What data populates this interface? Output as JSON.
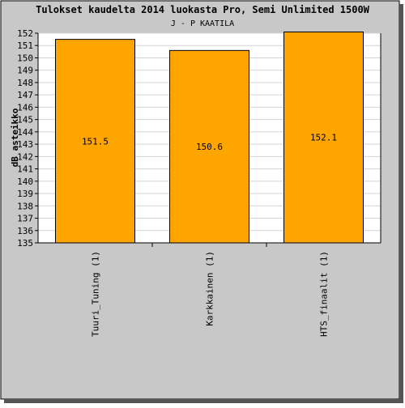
{
  "chart_data": {
    "type": "bar",
    "title": "Tulokset kaudelta 2014 luokasta Pro, Semi Unlimited 1500W",
    "subtitle": "J - P KAATILA",
    "ylabel": "dB asteikko",
    "xlabel": "",
    "categories": [
      "Tuuri_Tuning (1)",
      "Karkkainen (1)",
      "HTS_finaalit (1)"
    ],
    "values": [
      151.5,
      150.6,
      152.1
    ],
    "value_labels": [
      "151.5",
      "150.6",
      "152.1"
    ],
    "ylim": [
      135,
      152
    ],
    "yticks": [
      "135",
      "136",
      "137",
      "138",
      "139",
      "140",
      "141",
      "142",
      "143",
      "144",
      "145",
      "146",
      "147",
      "148",
      "149",
      "150",
      "151",
      "152"
    ],
    "grid": true,
    "legend": "none",
    "colors": {
      "bar": "#ffa500",
      "bar_stroke": "#000000",
      "background": "#c8c8c8",
      "plot": "#ffffff",
      "grid": "#d4d4d4"
    }
  }
}
